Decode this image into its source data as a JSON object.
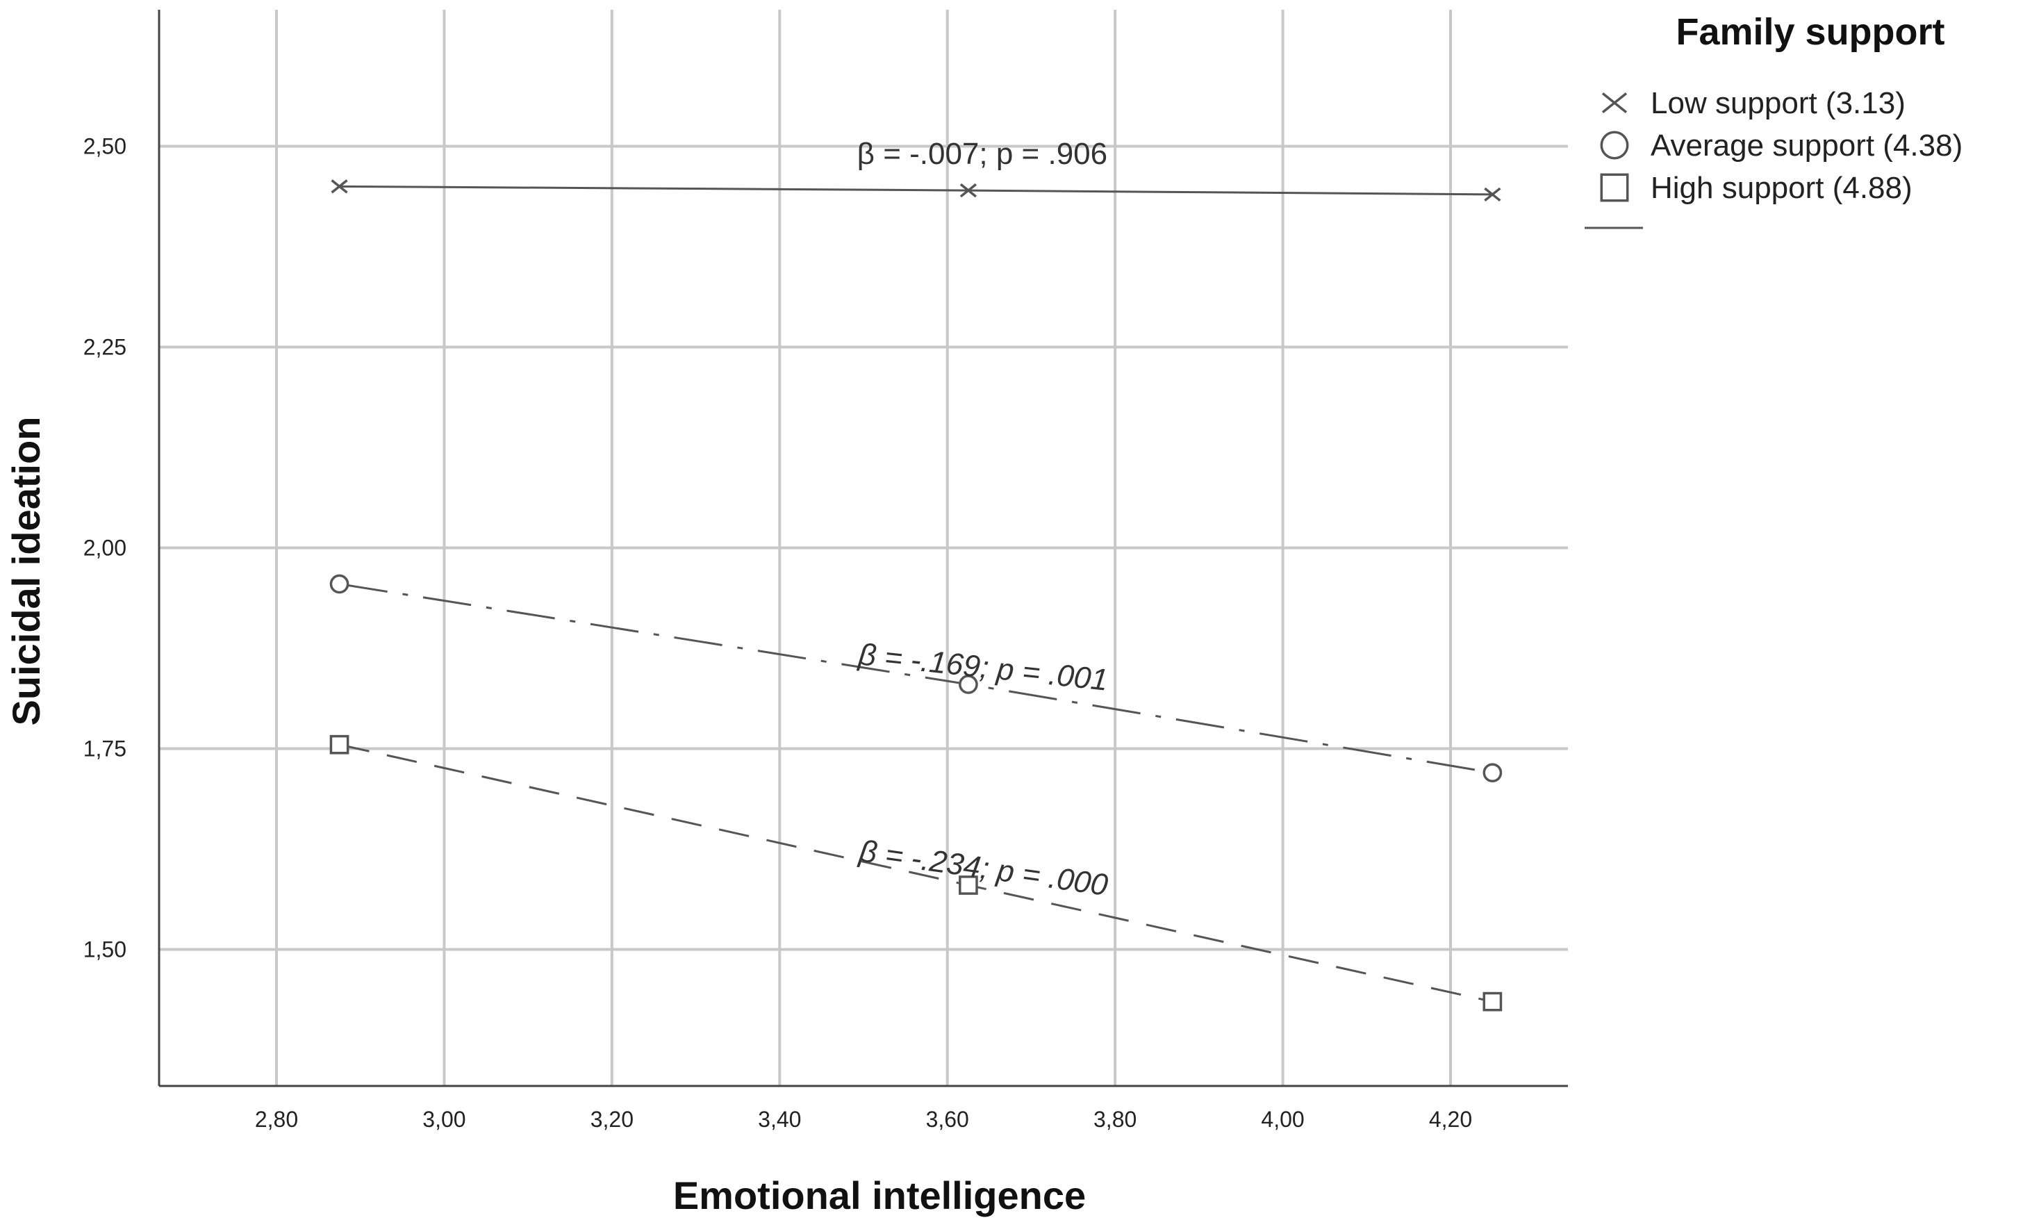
{
  "chart_data": {
    "type": "line",
    "xlabel": "Emotional intelligence",
    "ylabel": "Suicidal ideation",
    "xlim": [
      2.66,
      4.34
    ],
    "ylim": [
      1.33,
      2.67
    ],
    "xticks": [
      2.8,
      3.0,
      3.2,
      3.4,
      3.6,
      3.8,
      4.0,
      4.2
    ],
    "xtick_labels": [
      "2,80",
      "3,00",
      "3,20",
      "3,40",
      "3,60",
      "3,80",
      "4,00",
      "4,20"
    ],
    "yticks": [
      1.5,
      1.75,
      2.0,
      2.25,
      2.5
    ],
    "ytick_labels": [
      "1,50",
      "1,75",
      "2,00",
      "2,25",
      "2,50"
    ],
    "grid": true,
    "legend": {
      "title": "Family support",
      "placement": "top-right, outside plot"
    },
    "x": [
      2.875,
      3.625,
      4.25
    ],
    "series": [
      {
        "name": "Low support (3.13)",
        "marker": "x",
        "line_style": "solid",
        "values": [
          2.45,
          2.445,
          2.44
        ],
        "annotation": "β = -.007; p = .906"
      },
      {
        "name": "Average support (4.38)",
        "marker": "circle",
        "line_style": "dash-dot",
        "values": [
          1.955,
          1.83,
          1.72
        ],
        "annotation": "β = -.169; p = .001"
      },
      {
        "name": "High support (4.88)",
        "marker": "square",
        "line_style": "dashed",
        "values": [
          1.755,
          1.58,
          1.435
        ],
        "annotation": "β = -.234; p = .000"
      }
    ],
    "colors": {
      "series": "#555555",
      "grid": "#c8c8c8",
      "axis": "#444444"
    }
  }
}
